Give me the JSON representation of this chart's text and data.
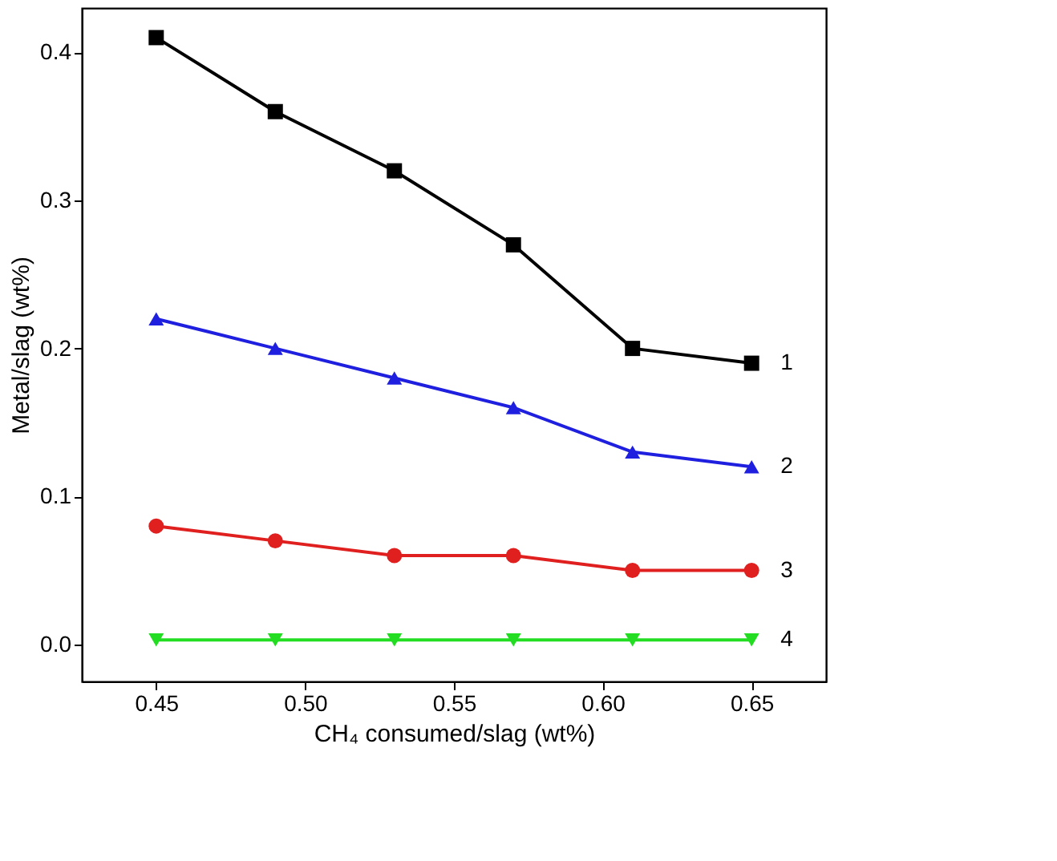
{
  "chart_data": {
    "type": "line",
    "xlabel": "CH₄ consumed/slag (wt%)",
    "ylabel": "Metal/slag (wt%)",
    "x": [
      0.45,
      0.49,
      0.53,
      0.57,
      0.61,
      0.65
    ],
    "xlim": [
      0.425,
      0.675
    ],
    "xticks": [
      0.45,
      {
        "value": 0.5,
        "label": "0.50"
      },
      0.55,
      {
        "value": 0.6,
        "label": "0.60"
      },
      0.65
    ],
    "ylim": [
      -0.025,
      0.43
    ],
    "yticks": [
      {
        "value": 0,
        "label": "0.0"
      },
      0.1,
      0.2,
      0.3,
      0.4
    ],
    "grid": false,
    "line_style": "solid",
    "series": [
      {
        "name": "1",
        "color": "#000000",
        "marker": "square",
        "values": [
          0.41,
          0.36,
          0.32,
          0.27,
          0.2,
          0.19
        ]
      },
      {
        "name": "2",
        "color": "#1f1fe0",
        "marker": "triangle",
        "values": [
          0.22,
          0.2,
          0.18,
          0.16,
          0.13,
          0.12
        ]
      },
      {
        "name": "3",
        "color": "#e01f1f",
        "marker": "circle",
        "values": [
          0.08,
          0.07,
          0.06,
          0.06,
          0.05,
          0.05
        ]
      },
      {
        "name": "4",
        "color": "#22dd22",
        "marker": "triangle-down",
        "values": [
          0.003,
          0.003,
          0.003,
          0.003,
          0.003,
          0.003
        ]
      }
    ]
  }
}
